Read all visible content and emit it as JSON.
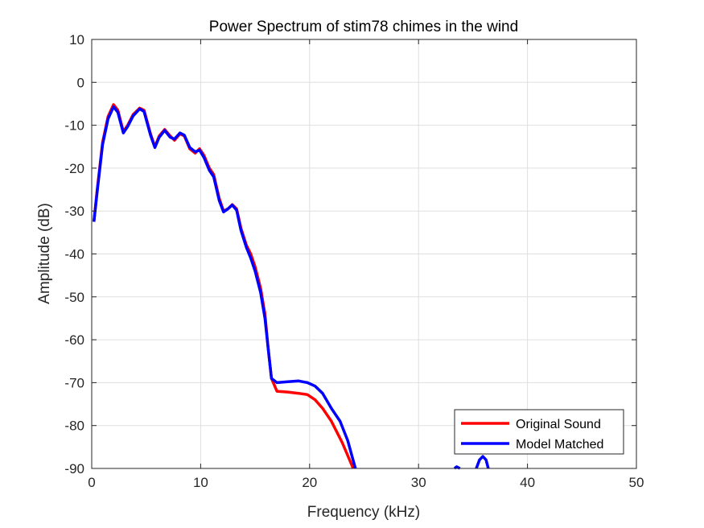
{
  "chart_data": {
    "type": "line",
    "title": "Power Spectrum of stim78 chimes in the wind",
    "xlabel": "Frequency (kHz)",
    "ylabel": "Amplitude (dB)",
    "xlim": [
      0,
      50
    ],
    "ylim": [
      -90,
      10
    ],
    "xticks": [
      0,
      10,
      20,
      30,
      40,
      50
    ],
    "yticks": [
      10,
      0,
      -10,
      -20,
      -30,
      -40,
      -50,
      -60,
      -70,
      -80,
      -90
    ],
    "grid": true,
    "legend_position": "bottom-right",
    "series": [
      {
        "name": "Original Sound",
        "color": "#ff0000",
        "segments": [
          [
            [
              0.2,
              -32.5
            ],
            [
              0.5,
              -25
            ],
            [
              1.0,
              -14
            ],
            [
              1.5,
              -8
            ],
            [
              2.0,
              -5.2
            ],
            [
              2.4,
              -6.5
            ],
            [
              2.9,
              -11.5
            ],
            [
              3.3,
              -10
            ],
            [
              3.8,
              -7.5
            ],
            [
              4.4,
              -6
            ],
            [
              4.8,
              -6.5
            ],
            [
              5.4,
              -12
            ],
            [
              5.8,
              -15
            ],
            [
              6.2,
              -12.5
            ],
            [
              6.7,
              -11
            ],
            [
              7.2,
              -12.5
            ],
            [
              7.6,
              -13.5
            ],
            [
              8.1,
              -12
            ],
            [
              8.5,
              -12.5
            ],
            [
              9.0,
              -15.5
            ],
            [
              9.5,
              -16.5
            ],
            [
              9.9,
              -15.5
            ],
            [
              10.3,
              -17
            ],
            [
              10.8,
              -20
            ],
            [
              11.2,
              -21.5
            ],
            [
              11.7,
              -27
            ],
            [
              12.1,
              -30
            ],
            [
              12.5,
              -29.5
            ],
            [
              12.9,
              -28.5
            ],
            [
              13.3,
              -29.5
            ],
            [
              13.7,
              -34
            ],
            [
              14.2,
              -38
            ],
            [
              14.6,
              -40
            ],
            [
              15.0,
              -43
            ],
            [
              15.5,
              -48
            ],
            [
              15.9,
              -54
            ],
            [
              16.2,
              -62
            ],
            [
              16.5,
              -69
            ],
            [
              17.0,
              -72
            ],
            [
              18.0,
              -72.2
            ],
            [
              19.0,
              -72.5
            ],
            [
              19.8,
              -72.8
            ],
            [
              20.5,
              -74
            ],
            [
              21.2,
              -76
            ],
            [
              22.0,
              -79
            ],
            [
              23.0,
              -84
            ],
            [
              24.0,
              -90
            ]
          ]
        ]
      },
      {
        "name": "Model Matched",
        "color": "#0000ff",
        "segments": [
          [
            [
              0.2,
              -32.5
            ],
            [
              0.5,
              -25.5
            ],
            [
              1.0,
              -14.5
            ],
            [
              1.5,
              -8.5
            ],
            [
              2.0,
              -5.7
            ],
            [
              2.4,
              -7
            ],
            [
              2.9,
              -11.8
            ],
            [
              3.3,
              -10.3
            ],
            [
              3.8,
              -7.8
            ],
            [
              4.4,
              -6.2
            ],
            [
              4.8,
              -6.8
            ],
            [
              5.4,
              -12.3
            ],
            [
              5.8,
              -15.2
            ],
            [
              6.2,
              -12.8
            ],
            [
              6.7,
              -11.2
            ],
            [
              7.2,
              -12.8
            ],
            [
              7.6,
              -13.2
            ],
            [
              8.1,
              -11.8
            ],
            [
              8.5,
              -12.3
            ],
            [
              9.0,
              -15.2
            ],
            [
              9.5,
              -16.2
            ],
            [
              9.9,
              -15.8
            ],
            [
              10.3,
              -17.5
            ],
            [
              10.8,
              -20.5
            ],
            [
              11.2,
              -22
            ],
            [
              11.7,
              -27.5
            ],
            [
              12.1,
              -30.2
            ],
            [
              12.5,
              -29.5
            ],
            [
              12.9,
              -28.6
            ],
            [
              13.3,
              -29.8
            ],
            [
              13.7,
              -34.5
            ],
            [
              14.2,
              -38.5
            ],
            [
              14.6,
              -41
            ],
            [
              15.0,
              -44
            ],
            [
              15.5,
              -49
            ],
            [
              15.9,
              -55
            ],
            [
              16.2,
              -62
            ],
            [
              16.5,
              -69
            ],
            [
              17.0,
              -70
            ],
            [
              18.0,
              -69.8
            ],
            [
              19.0,
              -69.6
            ],
            [
              19.8,
              -70
            ],
            [
              20.5,
              -70.8
            ],
            [
              21.2,
              -72.5
            ],
            [
              22.0,
              -76
            ],
            [
              22.8,
              -79
            ],
            [
              23.5,
              -83.5
            ],
            [
              24.2,
              -90
            ]
          ],
          [
            [
              33.3,
              -90
            ],
            [
              33.5,
              -89.6
            ],
            [
              33.8,
              -90
            ]
          ],
          [
            [
              35.3,
              -90
            ],
            [
              35.6,
              -88
            ],
            [
              35.9,
              -87.2
            ],
            [
              36.2,
              -88
            ],
            [
              36.4,
              -90
            ]
          ]
        ]
      }
    ]
  }
}
